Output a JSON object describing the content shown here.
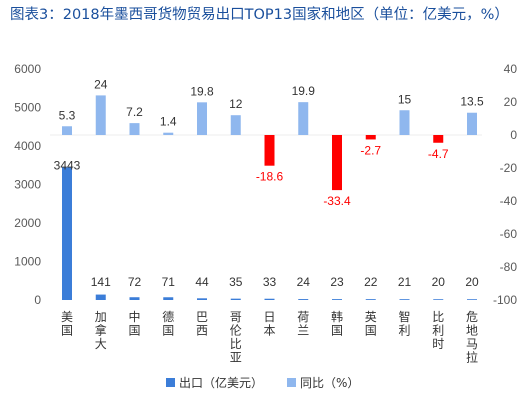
{
  "title": "图表3：2018年墨西哥货物贸易出口TOP13国家和地区（单位：亿美元，%）",
  "chart_data": {
    "type": "bar",
    "title": "图表3：2018年墨西哥货物贸易出口TOP13国家和地区（单位：亿美元，%）",
    "categories": [
      "美国",
      "加拿大",
      "中国",
      "德国",
      "巴西",
      "哥伦比亚",
      "日本",
      "荷兰",
      "韩国",
      "英国",
      "智利",
      "比利时",
      "危地马拉"
    ],
    "series": [
      {
        "name": "出口（亿美元）",
        "axis": "left",
        "color": "#3b7dd8",
        "values": [
          3443,
          141,
          72,
          71,
          44,
          35,
          33,
          24,
          23,
          22,
          21,
          20,
          20
        ],
        "labels": [
          "3443",
          "141",
          "72",
          "71",
          "44",
          "35",
          "33",
          "24",
          "23",
          "22",
          "21",
          "20",
          "20"
        ]
      },
      {
        "name": "同比（%）",
        "axis": "right",
        "color": "#8fb7ee",
        "negative_color": "#ff0000",
        "values": [
          5.3,
          24,
          7.2,
          1.4,
          19.8,
          12,
          -18.6,
          19.9,
          -33.4,
          -2.7,
          15,
          -4.7,
          13.5
        ],
        "labels": [
          "5.3",
          "24",
          "7.2",
          "1.4",
          "19.8",
          "12",
          "-18.6",
          "19.9",
          "-33.4",
          "-2.7",
          "15",
          "-4.7",
          "13.5"
        ]
      }
    ],
    "left_axis": {
      "ylim": [
        0,
        6000
      ],
      "ticks": [
        "0",
        "1000",
        "2000",
        "3000",
        "4000",
        "5000",
        "6000"
      ],
      "values": [
        0,
        1000,
        2000,
        3000,
        4000,
        5000,
        6000
      ]
    },
    "right_axis": {
      "ylim": [
        -100,
        40
      ],
      "ticks": [
        "-100",
        "-80",
        "-60",
        "-40",
        "-20",
        "0",
        "20",
        "40"
      ],
      "values": [
        -100,
        -80,
        -60,
        -40,
        -20,
        0,
        20,
        40
      ]
    },
    "legend": {
      "placement": "bottom",
      "items": [
        "出口（亿美元）",
        "同比（%）"
      ]
    },
    "grid": false
  }
}
